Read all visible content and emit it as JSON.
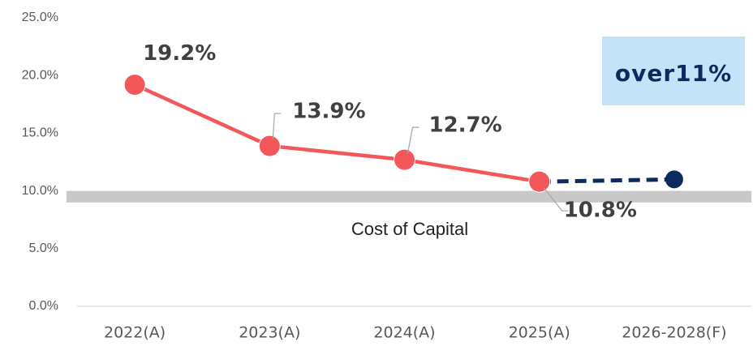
{
  "chart_data": {
    "type": "line",
    "categories": [
      "2022(A)",
      "2023(A)",
      "2024(A)",
      "2025(A)",
      "2026-2028(F)"
    ],
    "series": [
      {
        "color": "#f4575a",
        "values": [
          19.2,
          13.9,
          12.7,
          10.8,
          null
        ],
        "value_labels": [
          "19.2%",
          "13.9%",
          "12.7%",
          "10.8%",
          null
        ]
      },
      {
        "color": "#0d2a5e",
        "dashed": true,
        "values": [
          null,
          null,
          null,
          10.8,
          11
        ]
      }
    ],
    "annotations": [
      {
        "text": "over11%",
        "box_color": "#c5e3f8"
      }
    ],
    "band": {
      "label": "Cost of Capital",
      "range": [
        9,
        10
      ],
      "color": "#c8c8c8"
    },
    "ylim": [
      0,
      25
    ],
    "yticks": [
      {
        "value": 0,
        "label": "0.0%"
      },
      {
        "value": 5,
        "label": "5.0%"
      },
      {
        "value": 10,
        "label": "10.0%"
      },
      {
        "value": 15,
        "label": "15.0%"
      },
      {
        "value": 20,
        "label": "20.0%"
      },
      {
        "value": 25,
        "label": "25.0%"
      }
    ]
  }
}
